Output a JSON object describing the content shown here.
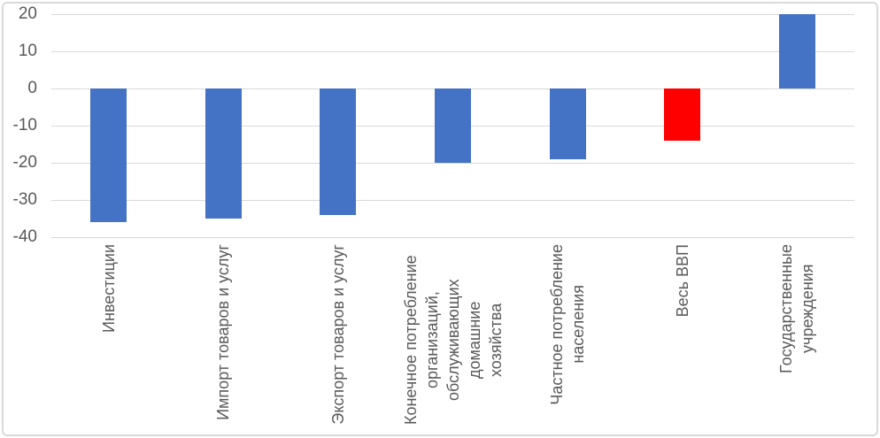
{
  "chart_data": {
    "type": "bar",
    "categories": [
      "Инвестиции",
      "Импорт товаров и услуг",
      "Экспорт товаров и услуг",
      "Конечное потребление\nорганизаций,\nобслуживающих домашние\nхозяйства",
      "Частное потребление\nнаселения",
      "Весь ВВП",
      "Государственные\nучреждения"
    ],
    "values": [
      -36,
      -35,
      -34,
      -20,
      -19,
      -14,
      20
    ],
    "bar_colors": [
      "#4472C4",
      "#4472C4",
      "#4472C4",
      "#4472C4",
      "#4472C4",
      "#FF0000",
      "#4472C4"
    ],
    "highlight_index": 5,
    "highlight_category": "Весь ВВП",
    "y_ticks": [
      20,
      10,
      0,
      -10,
      -20,
      -30,
      -40
    ],
    "ylim": [
      -40,
      20
    ],
    "grid": true,
    "legend": "none",
    "colors": {
      "bar_default": "#4472C4",
      "bar_highlight": "#FF0000",
      "gridline": "#D9D9D9",
      "axis_text": "#595959",
      "chart_border": "#D9D9D9",
      "background": "#FFFFFF"
    }
  }
}
